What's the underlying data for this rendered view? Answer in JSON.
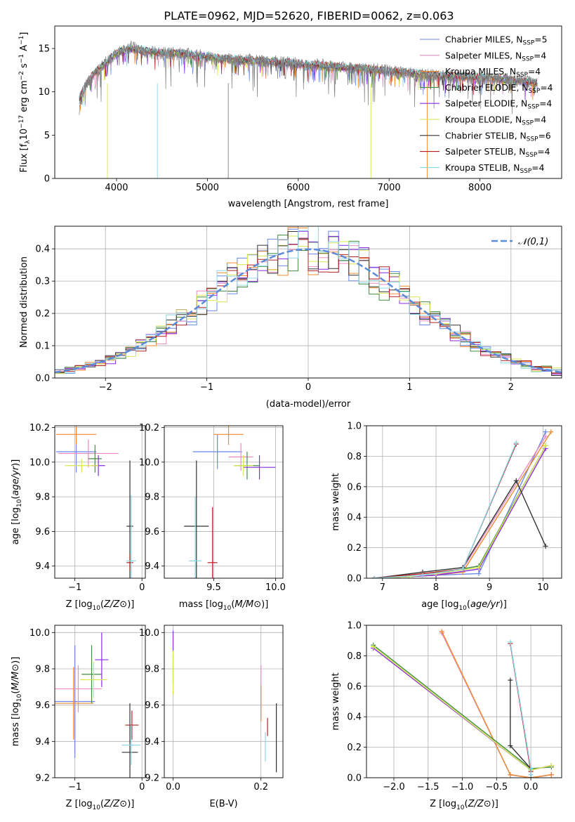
{
  "chart_data": [
    {
      "id": "spectrum",
      "type": "line",
      "title": "PLATE=0962, MJD=52620, FIBERID=0062, z=0.063",
      "xlabel": "wavelength [Angstrom, rest frame]",
      "ylabel": "Flux [f_λ10^{-17} erg cm^{-2} s^{-1} A^{-1}]",
      "xlim": [
        3320,
        8900
      ],
      "ylim": [
        0,
        17.6
      ],
      "xticks": [
        4000,
        5000,
        6000,
        7000,
        8000
      ],
      "yticks": [
        0,
        5,
        10,
        15
      ],
      "grid": false,
      "legend_position": "top-right",
      "data_series": {
        "name": "",
        "color": "#808080",
        "x": [
          3590,
          3650,
          3750,
          3850,
          3950,
          4050,
          4150,
          4300,
          4500,
          4700,
          4900,
          5100,
          5300,
          5500,
          5700,
          5900,
          6100,
          6300,
          6500,
          6700,
          6900,
          7100,
          7300,
          7500,
          7700,
          7900,
          8100,
          8300,
          8500,
          8630
        ],
        "y": [
          9.0,
          10.5,
          12.0,
          13.0,
          14.0,
          14.6,
          15.2,
          14.6,
          14.4,
          14.4,
          14.2,
          13.8,
          13.6,
          13.6,
          13.5,
          13.3,
          13.1,
          13.0,
          12.7,
          12.6,
          12.5,
          12.2,
          12.0,
          11.8,
          11.7,
          11.6,
          11.5,
          11.4,
          11.2,
          11.1
        ]
      },
      "model_series": {
        "name": "",
        "color": "#7fd0d8",
        "x": [
          3590,
          3650,
          3750,
          3850,
          3950,
          4050,
          4150,
          4300,
          4500,
          4700,
          4900,
          5100,
          5300,
          5500,
          5700,
          5900,
          6100,
          6300,
          6500,
          6700,
          6900,
          7100,
          7300,
          7500,
          7700,
          7900,
          8100,
          8300,
          8500,
          8630
        ],
        "y": [
          9.2,
          10.6,
          12.1,
          13.1,
          14.1,
          14.7,
          15.0,
          14.7,
          14.5,
          14.4,
          14.2,
          13.9,
          13.7,
          13.6,
          13.5,
          13.3,
          13.1,
          13.0,
          12.8,
          12.7,
          12.5,
          12.3,
          12.1,
          11.9,
          11.8,
          11.7,
          11.6,
          11.4,
          11.2,
          11.0
        ]
      },
      "legend": [
        {
          "name": "Chabrier MILES, N",
          "sub": "SSP",
          "suffix": "=5",
          "color": "#6a89e8"
        },
        {
          "name": "Salpeter MILES, N",
          "sub": "SSP",
          "suffix": "=4",
          "color": "#e88cc4"
        },
        {
          "name": "Kroupa MILES, N",
          "sub": "SSP",
          "suffix": "=4",
          "color": "#f28a2e"
        },
        {
          "name": "Chabrier ELODIE, N",
          "sub": "SSP",
          "suffix": "=4",
          "color": "#3f8f3f"
        },
        {
          "name": "Salpeter ELODIE, N",
          "sub": "SSP",
          "suffix": "=4",
          "color": "#8a2be2"
        },
        {
          "name": "Kroupa ELODIE, N",
          "sub": "SSP",
          "suffix": "=4",
          "color": "#d9e650"
        },
        {
          "name": "Chabrier STELIB, N",
          "sub": "SSP",
          "suffix": "=6",
          "color": "#333333"
        },
        {
          "name": "Salpeter STELIB, N",
          "sub": "SSP",
          "suffix": "=4",
          "color": "#b22222"
        },
        {
          "name": "Kroupa STELIB, N",
          "sub": "SSP",
          "suffix": "=4",
          "color": "#8fd6e8"
        }
      ]
    },
    {
      "id": "residuals",
      "type": "line",
      "xlabel": "(data-model)/error",
      "ylabel": "Normed distribution",
      "xlim": [
        -2.5,
        2.5
      ],
      "ylim": [
        0,
        0.47
      ],
      "xticks": [
        -2,
        -1,
        0,
        1,
        2
      ],
      "yticks": [
        0.0,
        0.1,
        0.2,
        0.3,
        0.4
      ],
      "grid": true,
      "legend_label": "𝒩(0,1)",
      "legend_position": "top-right",
      "gaussian_color": "#5b8ad8",
      "bin_width": 0.1,
      "series_colors": [
        "#6a89e8",
        "#e88cc4",
        "#f28a2e",
        "#3f8f3f",
        "#8a2be2",
        "#d9e650",
        "#333333",
        "#b22222",
        "#8fd6e8"
      ]
    },
    {
      "id": "age_vs_Z",
      "type": "scatter",
      "xlabel": "Z [log10(Z/Z⊙)]",
      "ylabel": "age  [log10(age/yr)]",
      "xlim": [
        -1.3,
        0.05
      ],
      "ylim": [
        9.33,
        10.21
      ],
      "xticks": [
        -1,
        0
      ],
      "yticks": [
        9.4,
        9.6,
        9.8,
        10.0,
        10.2
      ],
      "grid": true,
      "points": [
        {
          "color": "#6a89e8",
          "x": -0.98,
          "y": 10.06,
          "xerr": 0.3,
          "yerr": 0.12
        },
        {
          "color": "#e88cc4",
          "x": -0.8,
          "y": 10.05,
          "xerr": 0.45,
          "yerr": 0.08
        },
        {
          "color": "#f28a2e",
          "x": -0.98,
          "y": 10.16,
          "xerr": 0.3,
          "yerr": 0.06
        },
        {
          "color": "#3f8f3f",
          "x": -0.7,
          "y": 10.02,
          "xerr": 0.1,
          "yerr": 0.08
        },
        {
          "color": "#8a2be2",
          "x": -0.65,
          "y": 9.98,
          "xerr": 0.1,
          "yerr": 0.06
        },
        {
          "color": "#d9e650",
          "x": -0.9,
          "y": 9.98,
          "xerr": 0.25,
          "yerr": 0.04
        },
        {
          "color": "#333333",
          "x": -0.18,
          "y": 9.63,
          "xerr": 0.05,
          "yerr": 0.38
        },
        {
          "color": "#b22222",
          "x": -0.18,
          "y": 9.42,
          "xerr": 0.05,
          "yerr": 0.05
        },
        {
          "color": "#8fd6e8",
          "x": -0.16,
          "y": 9.43,
          "xerr": 0.07,
          "yerr": 0.38
        }
      ]
    },
    {
      "id": "age_vs_mass",
      "type": "scatter",
      "xlabel": "mass [log10(M/M⊙)]",
      "ylabel": "",
      "xlim": [
        9.1,
        10.06
      ],
      "ylim": [
        9.33,
        10.21
      ],
      "xticks": [
        9.5,
        10.0
      ],
      "yticks": [
        9.4,
        9.6,
        9.8,
        10.0,
        10.2
      ],
      "grid": true,
      "points": [
        {
          "color": "#6a89e8",
          "x": 9.53,
          "y": 10.06,
          "xerr": 0.2,
          "yerr": 0.1
        },
        {
          "color": "#e88cc4",
          "x": 9.72,
          "y": 10.03,
          "xerr": 0.1,
          "yerr": 0.08
        },
        {
          "color": "#f28a2e",
          "x": 9.62,
          "y": 10.16,
          "xerr": 0.12,
          "yerr": 0.06
        },
        {
          "color": "#3f8f3f",
          "x": 9.77,
          "y": 9.98,
          "xerr": 0.1,
          "yerr": 0.08
        },
        {
          "color": "#8a2be2",
          "x": 9.87,
          "y": 9.97,
          "xerr": 0.13,
          "yerr": 0.07
        },
        {
          "color": "#d9e650",
          "x": 9.74,
          "y": 9.98,
          "xerr": 0.08,
          "yerr": 0.06
        },
        {
          "color": "#333333",
          "x": 9.36,
          "y": 9.63,
          "xerr": 0.1,
          "yerr": 0.38
        },
        {
          "color": "#b22222",
          "x": 9.49,
          "y": 9.42,
          "xerr": 0.04,
          "yerr": 0.32
        },
        {
          "color": "#8fd6e8",
          "x": 9.35,
          "y": 9.43,
          "xerr": 0.05,
          "yerr": 0.37
        }
      ]
    },
    {
      "id": "mass_weight_vs_age",
      "type": "line",
      "xlabel": "age  [log10(age/yr)]",
      "ylabel": "mass weight",
      "xlim": [
        6.7,
        10.35
      ],
      "ylim": [
        0,
        1.0
      ],
      "xticks": [
        7,
        8,
        9,
        10
      ],
      "yticks": [
        0.0,
        0.2,
        0.4,
        0.6,
        0.8,
        1.0
      ],
      "grid": true,
      "series": [
        {
          "color": "#6a89e8",
          "x": [
            6.85,
            7.5,
            8.0,
            8.8,
            10.05
          ],
          "y": [
            0.0,
            0.01,
            0.02,
            0.03,
            0.96
          ]
        },
        {
          "color": "#e88cc4",
          "x": [
            6.85,
            7.5,
            8.0,
            8.5,
            10.05
          ],
          "y": [
            0.0,
            0.01,
            0.02,
            0.06,
            0.93
          ]
        },
        {
          "color": "#f28a2e",
          "x": [
            6.85,
            7.5,
            8.0,
            8.5,
            10.15
          ],
          "y": [
            0.0,
            0.01,
            0.02,
            0.04,
            0.96
          ]
        },
        {
          "color": "#3f8f3f",
          "x": [
            6.85,
            7.5,
            8.0,
            8.8,
            10.05
          ],
          "y": [
            0.0,
            0.01,
            0.03,
            0.08,
            0.87
          ]
        },
        {
          "color": "#8a2be2",
          "x": [
            6.85,
            7.5,
            8.0,
            8.8,
            10.05
          ],
          "y": [
            0.0,
            0.01,
            0.02,
            0.06,
            0.85
          ]
        },
        {
          "color": "#d9e650",
          "x": [
            6.85,
            7.5,
            8.0,
            8.8,
            10.05
          ],
          "y": [
            0.0,
            0.01,
            0.03,
            0.07,
            0.87
          ]
        },
        {
          "color": "#333333",
          "x": [
            6.85,
            7.75,
            8.5,
            9.5,
            10.05
          ],
          "y": [
            0.0,
            0.04,
            0.07,
            0.64,
            0.21
          ]
        },
        {
          "color": "#b22222",
          "x": [
            6.85,
            7.75,
            8.5,
            9.5
          ],
          "y": [
            0.0,
            0.03,
            0.06,
            0.88
          ]
        },
        {
          "color": "#8fd6e8",
          "x": [
            6.85,
            7.75,
            8.5,
            9.5
          ],
          "y": [
            0.0,
            0.02,
            0.06,
            0.89
          ]
        }
      ]
    },
    {
      "id": "mass_vs_Z",
      "type": "scatter",
      "xlabel": "Z [log10(Z/Z⊙)]",
      "ylabel": "mass [log10(M/M⊙)]",
      "xlim": [
        -1.3,
        0.05
      ],
      "ylim": [
        9.2,
        10.04
      ],
      "xticks": [
        -1,
        0
      ],
      "yticks": [
        9.2,
        9.4,
        9.6,
        9.8,
        10.0
      ],
      "grid": true,
      "points": [
        {
          "color": "#6a89e8",
          "x": -1.0,
          "y": 9.62,
          "xerr": 0.3,
          "yerr": 0.31
        },
        {
          "color": "#e88cc4",
          "x": -0.95,
          "y": 9.69,
          "xerr": 0.35,
          "yerr": 0.13
        },
        {
          "color": "#f28a2e",
          "x": -1.02,
          "y": 9.61,
          "xerr": 0.3,
          "yerr": 0.2
        },
        {
          "color": "#3f8f3f",
          "x": -0.75,
          "y": 9.77,
          "xerr": 0.15,
          "yerr": 0.16
        },
        {
          "color": "#8a2be2",
          "x": -0.6,
          "y": 9.85,
          "xerr": 0.1,
          "yerr": 0.15
        },
        {
          "color": "#d9e650",
          "x": -0.72,
          "y": 9.74,
          "xerr": 0.2,
          "yerr": 0.1
        },
        {
          "color": "#333333",
          "x": -0.18,
          "y": 9.34,
          "xerr": 0.12,
          "yerr": 0.27
        },
        {
          "color": "#b22222",
          "x": -0.15,
          "y": 9.49,
          "xerr": 0.1,
          "yerr": 0.08
        },
        {
          "color": "#8fd6e8",
          "x": -0.16,
          "y": 9.38,
          "xerr": 0.14,
          "yerr": 0.11
        }
      ]
    },
    {
      "id": "mass_vs_ebv",
      "type": "scatter",
      "xlabel": "E(B-V)",
      "ylabel": "",
      "xlim": [
        -0.02,
        0.25
      ],
      "ylim": [
        9.2,
        10.04
      ],
      "xticks": [
        0.0,
        0.2
      ],
      "yticks": [
        9.2,
        9.4,
        9.6,
        9.8,
        10.0
      ],
      "grid": true,
      "points": [
        {
          "color": "#6a89e8",
          "x": 0.0,
          "y": 9.8,
          "xerr": 0,
          "yerr": 0.08
        },
        {
          "color": "#8a2be2",
          "x": 0.0,
          "y": 9.95,
          "xerr": 0,
          "yerr": 0.06
        },
        {
          "color": "#d9e650",
          "x": 0.0,
          "y": 9.78,
          "xerr": 0,
          "yerr": 0.12
        },
        {
          "color": "#e88cc4",
          "x": 0.2,
          "y": 9.67,
          "xerr": 0,
          "yerr": 0.15
        },
        {
          "color": "#f28a2e",
          "x": 0.2,
          "y": 9.61,
          "xerr": 0,
          "yerr": 0.1
        },
        {
          "color": "#b22222",
          "x": 0.215,
          "y": 9.48,
          "xerr": 0,
          "yerr": 0.05
        },
        {
          "color": "#8fd6e8",
          "x": 0.21,
          "y": 9.37,
          "xerr": 0,
          "yerr": 0.08
        },
        {
          "color": "#333333",
          "x": 0.235,
          "y": 9.42,
          "xerr": 0,
          "yerr": 0.19
        }
      ]
    },
    {
      "id": "mass_weight_vs_Z",
      "type": "line",
      "xlabel": "Z [log10(Z/Z⊙)]",
      "ylabel": "mass weight",
      "xlim": [
        -2.4,
        0.45
      ],
      "ylim": [
        0,
        1.0
      ],
      "xticks": [
        -2.0,
        -1.5,
        -1.0,
        -0.5,
        0.0
      ],
      "yticks": [
        0.0,
        0.2,
        0.4,
        0.6,
        0.8,
        1.0
      ],
      "grid": true,
      "series": [
        {
          "color": "#6a89e8",
          "x": [
            -1.3,
            -0.3,
            0.0,
            0.3
          ],
          "y": [
            0.95,
            0.02,
            0.0,
            0.02
          ]
        },
        {
          "color": "#e88cc4",
          "x": [
            -1.3,
            -0.3,
            0.0,
            0.3
          ],
          "y": [
            0.95,
            0.02,
            0.0,
            0.02
          ]
        },
        {
          "color": "#f28a2e",
          "x": [
            -1.3,
            -0.3,
            0.0,
            0.3
          ],
          "y": [
            0.96,
            0.02,
            0.0,
            0.02
          ]
        },
        {
          "color": "#3f8f3f",
          "x": [
            -2.3,
            0.0,
            0.3
          ],
          "y": [
            0.87,
            0.06,
            0.07
          ]
        },
        {
          "color": "#8a2be2",
          "x": [
            -2.3,
            0.0,
            0.3
          ],
          "y": [
            0.85,
            0.05,
            0.08
          ]
        },
        {
          "color": "#d9e650",
          "x": [
            -2.3,
            0.0,
            0.3
          ],
          "y": [
            0.86,
            0.05,
            0.08
          ]
        },
        {
          "color": "#333333",
          "x": [
            -0.3,
            -0.3,
            0.0,
            0.0
          ],
          "y": [
            0.64,
            0.21,
            0.06,
            0.0
          ]
        },
        {
          "color": "#b22222",
          "x": [
            -0.3,
            0.0
          ],
          "y": [
            0.88,
            0.04
          ]
        },
        {
          "color": "#8fd6e8",
          "x": [
            -0.3,
            0.0,
            0.0
          ],
          "y": [
            0.89,
            0.06,
            0.02
          ]
        }
      ]
    }
  ]
}
